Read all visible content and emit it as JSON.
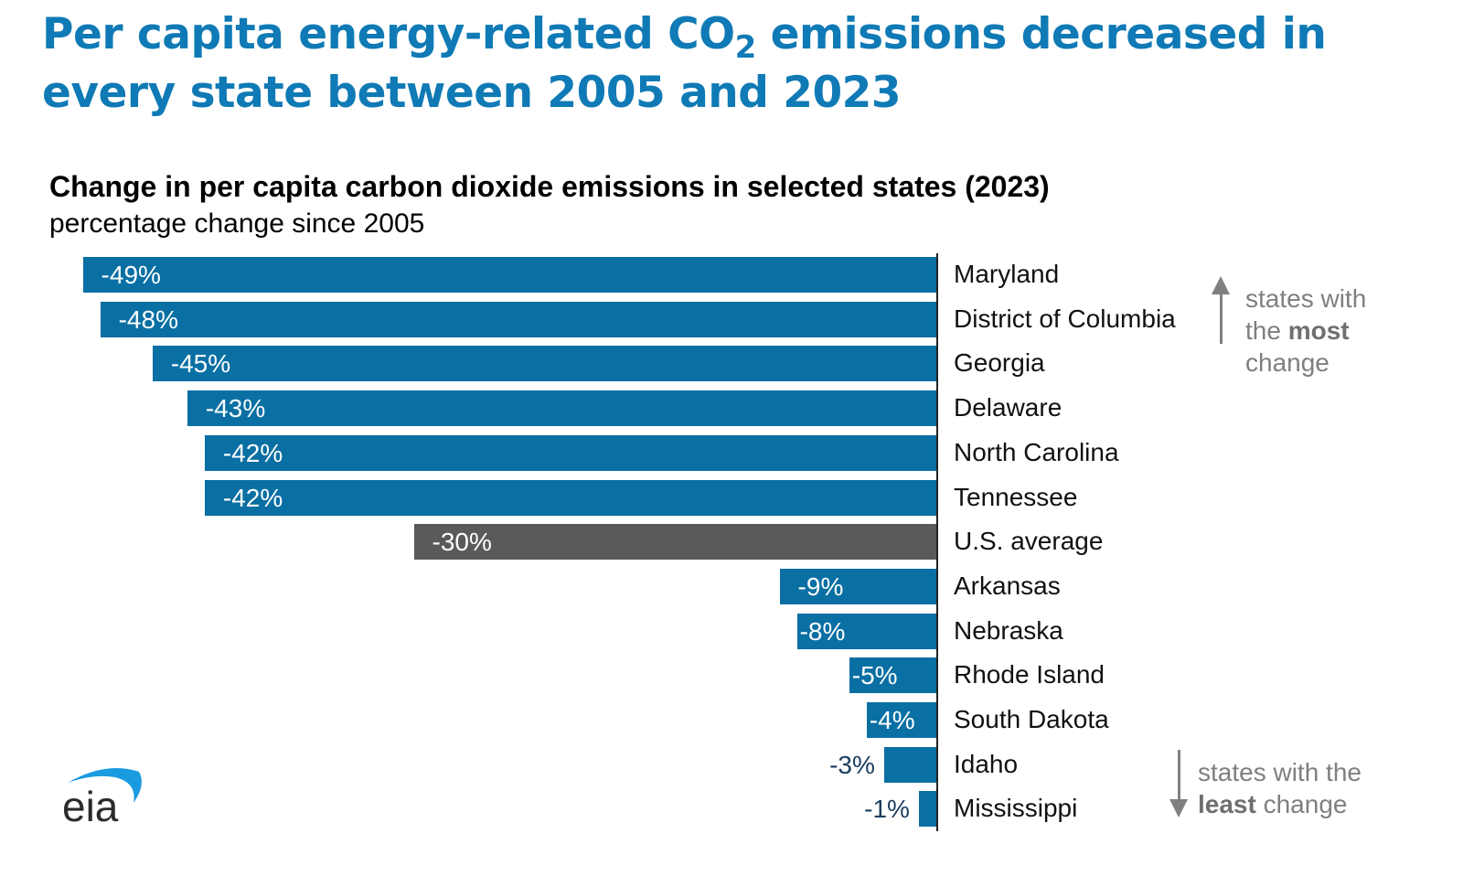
{
  "title_pre": "Per capita energy-related CO",
  "title_sub": "2",
  "title_post": " emissions decreased in every state between 2005 and 2023",
  "chart_data": {
    "type": "bar",
    "orientation": "horizontal",
    "title": "Change in per capita carbon dioxide emissions in selected states (2023)",
    "subtitle": "percentage change since 2005",
    "categories": [
      "Maryland",
      "District of Columbia",
      "Georgia",
      "Delaware",
      "North Carolina",
      "Tennessee",
      "U.S. average",
      "Arkansas",
      "Nebraska",
      "Rhode Island",
      "South Dakota",
      "Idaho",
      "Mississippi"
    ],
    "values": [
      -49,
      -48,
      -45,
      -43,
      -42,
      -42,
      -30,
      -9,
      -8,
      -5,
      -4,
      -3,
      -1
    ],
    "labels": [
      "-49%",
      "-48%",
      "-45%",
      "-43%",
      "-42%",
      "-42%",
      "-30%",
      "-9%",
      "-8%",
      "-5%",
      "-4%",
      "-3%",
      "-1%"
    ],
    "highlight_index": 6,
    "xlim": [
      -49,
      0
    ]
  },
  "colors": {
    "bar": "#0a6fa3",
    "average": "#5a5a5a",
    "title": "#0f7ab5",
    "outside_label": "#1b3d5e",
    "note": "#7f7f7f"
  },
  "notes": {
    "most_a": "states with",
    "most_b": "the ",
    "most_bold": "most",
    "most_c": "change",
    "least_a": "states with the",
    "least_bold": "least",
    "least_b": " change"
  },
  "logo": "eia"
}
